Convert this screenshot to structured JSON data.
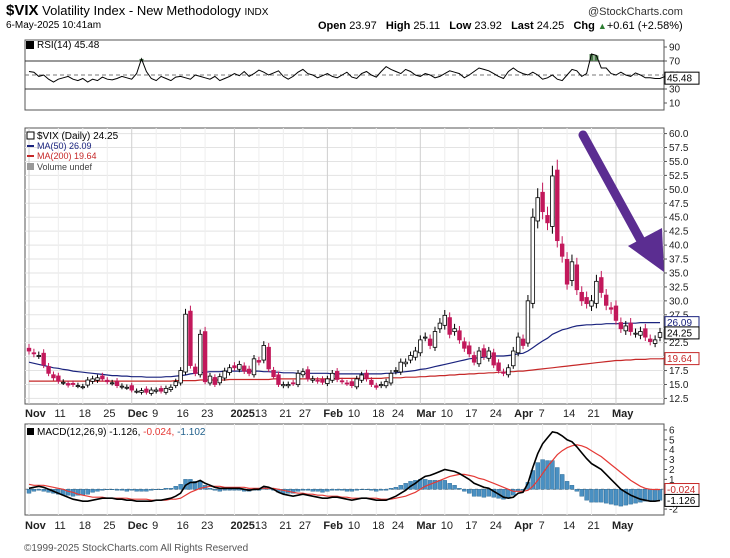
{
  "header": {
    "symbol": "$VIX",
    "name": "Volatility Index - New Methodology",
    "exchange": "INDX",
    "date": "6-May-2025 10:41am",
    "open_label": "Open",
    "open": "23.97",
    "high_label": "High",
    "high": "25.11",
    "low_label": "Low",
    "low": "23.92",
    "last_label": "Last",
    "last": "24.25",
    "chg_label": "Chg",
    "chg": "+0.61 (+2.58%)",
    "chg_icon": "up-triangle-icon",
    "brand": "@StockCharts.com"
  },
  "footer": "©1999-2025 StockCharts.com All Rights Reserved",
  "chart_data": [
    {
      "type": "line",
      "panel": "rsi",
      "legend": "RSI(14) 45.48",
      "yticks": [
        10,
        30,
        50,
        70,
        90
      ],
      "ylim": [
        0,
        100
      ],
      "reference_lines": [
        30,
        50,
        70
      ],
      "value_marker": "45.48",
      "series": [
        {
          "name": "RSI(14)",
          "values": [
            55,
            54,
            48,
            50,
            44,
            40,
            44,
            46,
            48,
            44,
            42,
            45,
            40,
            44,
            42,
            47,
            44,
            43,
            45,
            48,
            46,
            44,
            52,
            73,
            55,
            45,
            42,
            48,
            45,
            42,
            47,
            48,
            46,
            44,
            50,
            48,
            46,
            44,
            48,
            42,
            45,
            48,
            52,
            49,
            55,
            48,
            52,
            57,
            54,
            50,
            53,
            56,
            48,
            44,
            48,
            54,
            58,
            52,
            50,
            46,
            49,
            52,
            48,
            46,
            50,
            54,
            47,
            45,
            52,
            55,
            50,
            47,
            55,
            62,
            58,
            55,
            52,
            58,
            55,
            50,
            48,
            52,
            50,
            46,
            48,
            52,
            56,
            54,
            52,
            46,
            50,
            55,
            60,
            58,
            56,
            52,
            48,
            45,
            55,
            60,
            55,
            52,
            50,
            54,
            50,
            44,
            46,
            50,
            44,
            42,
            50,
            58,
            56,
            48,
            52,
            80,
            78,
            60,
            60,
            52,
            50,
            54,
            50,
            48,
            53,
            50,
            46,
            46,
            45,
            45,
            48
          ]
        }
      ]
    },
    {
      "type": "candlestick",
      "panel": "price",
      "legend": {
        "symbol": "$VIX (Daily) 24.25",
        "ma50": "MA(50) 26.09",
        "ma200": "MA(200) 19.64",
        "volume": "Volume undef"
      },
      "yticks": [
        "12.5",
        "15.0",
        "17.5",
        "20.0",
        "22.5",
        "25.0",
        "27.5",
        "30.0",
        "32.5",
        "35.0",
        "37.5",
        "40.0",
        "42.5",
        "45.0",
        "47.5",
        "50.0",
        "52.5",
        "55.0",
        "57.5",
        "60.0"
      ],
      "ytick_values": [
        12.5,
        15,
        17.5,
        20,
        22.5,
        25,
        27.5,
        30,
        32.5,
        35,
        37.5,
        40,
        42.5,
        45,
        47.5,
        50,
        52.5,
        55,
        57.5,
        60
      ],
      "ylim": [
        11.5,
        61
      ],
      "value_markers": [
        {
          "label": "26.09",
          "value": 26.09,
          "color": "#1a237e"
        },
        {
          "label": "24.25",
          "value": 24.25,
          "color": "#000000"
        },
        {
          "label": "19.64",
          "value": 19.64,
          "color": "#c62828"
        }
      ],
      "xticks": [
        "Nov",
        "11",
        "18",
        "25",
        "Dec",
        "9",
        "16",
        "23",
        "2025",
        "13",
        "21",
        "27",
        "Feb",
        "10",
        "18",
        "24",
        "Mar",
        "10",
        "17",
        "24",
        "Apr",
        "7",
        "14",
        "21",
        "May"
      ],
      "xtick_bold": [
        "Nov",
        "Dec",
        "2025",
        "Feb",
        "Mar",
        "Apr",
        "May"
      ],
      "xtick_index": [
        0,
        6,
        11,
        16,
        21,
        26,
        31,
        36,
        42,
        47,
        52,
        56,
        61,
        66,
        71,
        75,
        80,
        85,
        90,
        95,
        100,
        105,
        110,
        115,
        120
      ],
      "closes": [
        21.0,
        20.5,
        20.2,
        18.5,
        17.0,
        16.2,
        15.6,
        15.4,
        14.9,
        15.0,
        14.8,
        14.6,
        15.8,
        16.0,
        16.2,
        16.0,
        15.5,
        15.3,
        14.8,
        14.7,
        14.5,
        14.0,
        13.8,
        13.9,
        13.6,
        14.0,
        14.0,
        13.8,
        14.3,
        14.5,
        15.5,
        17.5,
        27.6,
        18.4,
        17.0,
        24.0,
        15.5,
        16.5,
        15.0,
        16.4,
        17.4,
        18.0,
        18.0,
        18.6,
        17.4,
        17.0,
        19.6,
        19.0,
        22.0,
        17.8,
        16.4,
        15.0,
        15.0,
        15.0,
        15.2,
        17.0,
        17.3,
        16.0,
        16.0,
        15.6,
        15.4,
        16.0,
        17.0,
        15.9,
        15.5,
        15.2,
        14.8,
        16.0,
        16.7,
        16.0,
        15.0,
        14.5,
        15.0,
        15.5,
        17.0,
        17.5,
        19.0,
        19.0,
        20.2,
        21.0,
        23.0,
        23.5,
        22.0,
        24.5,
        26.0,
        27.4,
        24.0,
        25.0,
        23.0,
        21.5,
        20.5,
        19.0,
        21.0,
        20.0,
        21.0,
        18.5,
        17.5,
        17.0,
        18.0,
        21.0,
        23.5,
        22.0,
        30.0,
        45.0,
        48.5,
        46.0,
        44.0,
        52.4,
        40.8,
        38.0,
        33.0,
        37.0,
        32.0,
        30.0,
        29.5,
        30.0,
        33.5,
        31.5,
        29.2,
        28.5,
        26.5,
        25.0,
        25.5,
        24.5,
        24.2,
        24.5,
        23.5,
        22.7,
        23.0,
        24.3
      ],
      "series": [
        {
          "name": "MA(50)",
          "values": [
            19.0,
            18.8,
            18.6,
            18.4,
            18.2,
            18.0,
            17.9,
            17.7,
            17.6,
            17.4,
            17.3,
            17.2,
            17.1,
            17.0,
            16.9,
            16.8,
            16.7,
            16.6,
            16.6,
            16.5,
            16.5,
            16.4,
            16.4,
            16.4,
            16.3,
            16.3,
            16.3,
            16.3,
            16.4,
            16.4,
            16.5,
            16.6,
            16.7,
            16.9,
            17.0,
            17.1,
            17.2,
            17.3,
            17.3,
            17.3,
            17.4,
            17.4,
            17.4,
            17.4,
            17.4,
            17.4,
            17.4,
            17.4,
            17.3,
            17.3,
            17.2,
            17.2,
            17.1,
            17.1,
            17.1,
            17.0,
            17.0,
            17.0,
            17.0,
            17.0,
            17.0,
            17.0,
            16.9,
            16.9,
            16.9,
            16.9,
            16.9,
            16.9,
            16.9,
            16.9,
            16.9,
            16.9,
            16.9,
            17.0,
            17.0,
            17.1,
            17.2,
            17.3,
            17.4,
            17.5,
            17.7,
            17.8,
            18.0,
            18.2,
            18.4,
            18.6,
            18.8,
            19.0,
            19.2,
            19.4,
            19.6,
            19.7,
            19.8,
            19.9,
            20.0,
            20.1,
            20.1,
            20.1,
            20.2,
            20.3,
            20.5,
            20.6,
            21.0,
            21.6,
            22.2,
            22.8,
            23.3,
            24.0,
            24.4,
            24.8,
            25.0,
            25.3,
            25.5,
            25.6,
            25.7,
            25.7,
            25.8,
            25.8,
            25.9,
            25.9,
            25.9,
            25.9,
            26.0,
            26.0,
            26.0,
            26.1,
            26.1,
            26.1,
            26.1,
            26.1
          ]
        },
        {
          "name": "MA(200)",
          "values": [
            15.6,
            15.6,
            15.6,
            15.6,
            15.6,
            15.6,
            15.6,
            15.6,
            15.6,
            15.6,
            15.6,
            15.6,
            15.6,
            15.6,
            15.6,
            15.6,
            15.6,
            15.6,
            15.6,
            15.6,
            15.6,
            15.6,
            15.6,
            15.6,
            15.6,
            15.6,
            15.6,
            15.6,
            15.6,
            15.6,
            15.7,
            15.7,
            15.7,
            15.7,
            15.7,
            15.8,
            15.8,
            15.8,
            15.8,
            15.8,
            15.8,
            15.9,
            15.9,
            15.9,
            15.9,
            15.9,
            15.9,
            15.9,
            15.9,
            15.9,
            16.0,
            16.0,
            16.0,
            16.0,
            16.0,
            16.0,
            16.0,
            16.0,
            16.0,
            16.0,
            16.0,
            16.0,
            16.0,
            16.1,
            16.1,
            16.1,
            16.1,
            16.1,
            16.1,
            16.1,
            16.1,
            16.1,
            16.1,
            16.2,
            16.2,
            16.2,
            16.2,
            16.3,
            16.3,
            16.3,
            16.4,
            16.4,
            16.5,
            16.5,
            16.6,
            16.6,
            16.7,
            16.7,
            16.8,
            16.8,
            16.9,
            16.9,
            17.0,
            17.0,
            17.1,
            17.1,
            17.2,
            17.2,
            17.3,
            17.3,
            17.4,
            17.4,
            17.5,
            17.6,
            17.7,
            17.8,
            17.9,
            18.0,
            18.1,
            18.2,
            18.3,
            18.4,
            18.5,
            18.6,
            18.7,
            18.8,
            18.9,
            19.0,
            19.1,
            19.2,
            19.3,
            19.3,
            19.4,
            19.4,
            19.5,
            19.5,
            19.5,
            19.6,
            19.6,
            19.6,
            19.64
          ]
        }
      ]
    },
    {
      "type": "line+bar",
      "panel": "macd",
      "legend": {
        "title": "MACD(12,26,9)",
        "macd": "-1.126",
        "signal": "-0.024",
        "hist": "-1.102"
      },
      "yticks": [
        -2,
        -1,
        0,
        1,
        2,
        3,
        4,
        5,
        6
      ],
      "ylim": [
        -2.6,
        6.6
      ],
      "value_markers": [
        {
          "label": "-0.024",
          "value": -0.024,
          "color": "#c62828"
        },
        {
          "label": "-1.126",
          "value": -1.126,
          "color": "#000000"
        }
      ],
      "series": [
        {
          "name": "MACD",
          "values": [
            0.1,
            0.2,
            0.3,
            0.2,
            0.0,
            -0.2,
            -0.4,
            -0.6,
            -0.8,
            -1.0,
            -1.1,
            -1.2,
            -1.2,
            -1.1,
            -1.0,
            -0.9,
            -0.9,
            -0.9,
            -1.0,
            -1.0,
            -1.1,
            -1.1,
            -1.2,
            -1.2,
            -1.2,
            -1.2,
            -1.1,
            -1.1,
            -1.0,
            -0.9,
            -0.7,
            -0.4,
            0.4,
            0.7,
            0.7,
            0.9,
            0.6,
            0.4,
            0.2,
            0.1,
            0.1,
            0.1,
            0.1,
            0.1,
            0.0,
            -0.1,
            0.0,
            0.0,
            0.3,
            0.2,
            0.0,
            -0.3,
            -0.5,
            -0.6,
            -0.7,
            -0.6,
            -0.5,
            -0.6,
            -0.7,
            -0.8,
            -0.9,
            -0.9,
            -0.8,
            -0.8,
            -0.9,
            -1.0,
            -1.1,
            -1.0,
            -0.9,
            -0.9,
            -1.0,
            -1.1,
            -1.1,
            -1.1,
            -0.9,
            -0.7,
            -0.4,
            -0.1,
            0.3,
            0.6,
            1.0,
            1.3,
            1.4,
            1.6,
            1.8,
            2.0,
            1.9,
            1.8,
            1.6,
            1.3,
            1.0,
            0.6,
            0.4,
            0.2,
            0.1,
            -0.2,
            -0.5,
            -0.8,
            -0.9,
            -0.8,
            -0.4,
            -0.3,
            0.6,
            2.2,
            3.6,
            4.6,
            5.2,
            5.8,
            5.7,
            5.4,
            5.0,
            4.8,
            4.3,
            3.7,
            3.1,
            2.6,
            2.3,
            2.0,
            1.5,
            1.0,
            0.5,
            0.0,
            -0.3,
            -0.6,
            -0.8,
            -1.0,
            -1.1,
            -1.2,
            -1.2,
            -1.13
          ]
        },
        {
          "name": "Signal",
          "values": [
            0.5,
            0.4,
            0.4,
            0.4,
            0.3,
            0.2,
            0.1,
            0.0,
            -0.2,
            -0.3,
            -0.5,
            -0.6,
            -0.7,
            -0.8,
            -0.8,
            -0.8,
            -0.9,
            -0.9,
            -0.9,
            -0.9,
            -0.9,
            -1.0,
            -1.0,
            -1.0,
            -1.0,
            -1.1,
            -1.1,
            -1.1,
            -1.1,
            -1.0,
            -1.0,
            -0.9,
            -0.6,
            -0.3,
            -0.1,
            0.1,
            0.2,
            0.3,
            0.3,
            0.3,
            0.2,
            0.2,
            0.2,
            0.2,
            0.2,
            0.1,
            0.1,
            0.1,
            0.1,
            0.1,
            0.1,
            0.0,
            -0.1,
            -0.2,
            -0.3,
            -0.4,
            -0.4,
            -0.5,
            -0.5,
            -0.6,
            -0.6,
            -0.7,
            -0.7,
            -0.7,
            -0.8,
            -0.8,
            -0.9,
            -0.9,
            -0.9,
            -0.9,
            -0.9,
            -0.9,
            -1.0,
            -1.0,
            -1.0,
            -0.9,
            -0.8,
            -0.7,
            -0.5,
            -0.3,
            0.0,
            0.3,
            0.5,
            0.7,
            0.9,
            1.1,
            1.3,
            1.4,
            1.5,
            1.5,
            1.4,
            1.3,
            1.1,
            1.0,
            0.8,
            0.6,
            0.4,
            0.2,
            0.0,
            -0.2,
            -0.2,
            -0.2,
            -0.1,
            0.3,
            0.9,
            1.6,
            2.3,
            2.9,
            3.5,
            3.9,
            4.2,
            4.4,
            4.5,
            4.4,
            4.2,
            3.9,
            3.6,
            3.3,
            2.9,
            2.5,
            2.1,
            1.7,
            1.3,
            0.9,
            0.6,
            0.3,
            0.1,
            0.0,
            -0.02,
            -0.024
          ]
        }
      ]
    }
  ]
}
